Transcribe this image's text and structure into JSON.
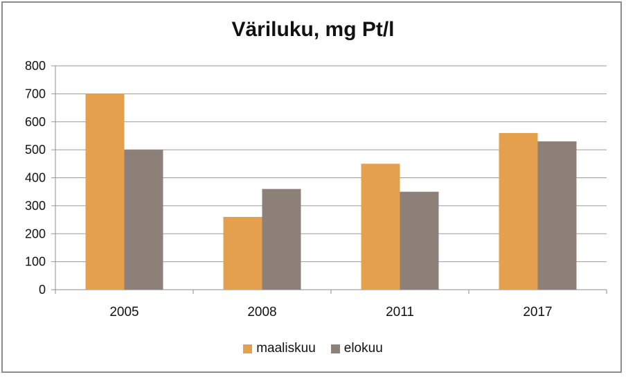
{
  "chart_data": {
    "type": "bar",
    "title": "Väriluku, mg Pt/l",
    "categories": [
      "2005",
      "2008",
      "2011",
      "2017"
    ],
    "series": [
      {
        "name": "maaliskuu",
        "values": [
          700,
          260,
          450,
          560
        ],
        "color": "#e4a04c"
      },
      {
        "name": "elokuu",
        "values": [
          500,
          360,
          350,
          530
        ],
        "color": "#8c8079"
      }
    ],
    "ylim": [
      0,
      800
    ],
    "yticks": [
      "0",
      "100",
      "200",
      "300",
      "400",
      "500",
      "600",
      "700",
      "800"
    ],
    "grid": true,
    "legend_position": "bottom"
  }
}
